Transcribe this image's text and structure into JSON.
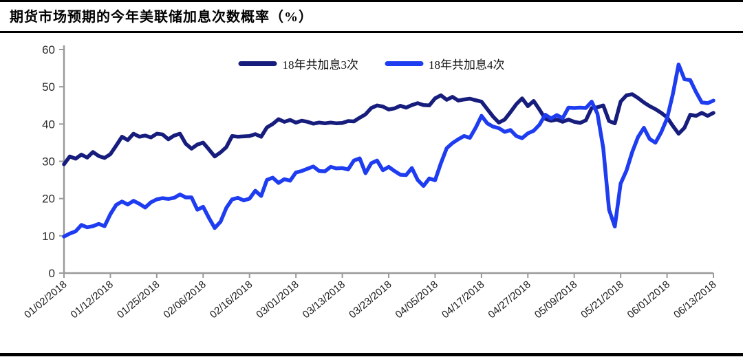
{
  "page": {
    "title": "期货市场预期的今年美联储加息次数概率（%）"
  },
  "chart_data": {
    "type": "line",
    "title": "期货市场预期的今年美联储加息次数概率（%）",
    "xlabel": "",
    "ylabel": "",
    "ylim": [
      0,
      60
    ],
    "y_ticks": [
      0,
      10,
      20,
      30,
      40,
      50,
      60
    ],
    "grid": false,
    "legend_position": "top-center",
    "axis_color": "#9a9a9a",
    "tick_text_color": "#2b2b2b",
    "x_labels": [
      "01/02/2018",
      "01/12/2018",
      "01/25/2018",
      "02/06/2018",
      "02/16/2018",
      "03/01/2018",
      "03/13/2018",
      "03/23/2018",
      "04/05/2018",
      "04/17/2018",
      "04/27/2018",
      "05/09/2018",
      "05/21/2018",
      "06/01/2018",
      "06/13/2018"
    ],
    "x_tick_step": 8,
    "series": [
      {
        "name": "18年共加息3次",
        "color": "#171d7c",
        "values": [
          29.2,
          31.3,
          30.7,
          31.8,
          31.0,
          32.5,
          31.4,
          30.9,
          31.9,
          34.2,
          36.6,
          35.7,
          37.4,
          36.6,
          36.9,
          36.4,
          37.4,
          37.2,
          35.9,
          36.9,
          37.4,
          34.7,
          33.4,
          34.5,
          35.0,
          33.2,
          31.3,
          32.4,
          33.8,
          36.8,
          36.6,
          36.7,
          36.8,
          37.3,
          36.6,
          39.1,
          40.0,
          41.3,
          40.6,
          41.1,
          40.4,
          40.9,
          40.6,
          40.1,
          40.4,
          40.2,
          40.4,
          40.2,
          40.3,
          40.8,
          40.7,
          41.7,
          42.6,
          44.3,
          45.0,
          44.7,
          43.9,
          44.2,
          44.9,
          44.4,
          45.1,
          45.6,
          45.1,
          45.0,
          46.9,
          47.7,
          46.5,
          47.3,
          46.3,
          46.6,
          46.8,
          46.4,
          46.0,
          44.0,
          42.0,
          40.4,
          41.2,
          43.2,
          45.3,
          46.9,
          44.8,
          46.2,
          43.9,
          41.4,
          40.9,
          41.2,
          40.6,
          41.2,
          40.6,
          40.3,
          41.0,
          44.3,
          44.5,
          45.0,
          40.8,
          40.2,
          46.0,
          47.7,
          48.0,
          47.0,
          45.8,
          44.8,
          44.0,
          43.0,
          41.8,
          39.5,
          37.4,
          39.0,
          42.5,
          42.2,
          43.0,
          42.2,
          43.0
        ]
      },
      {
        "name": "18年共加息4次",
        "color": "#1e3cf0",
        "values": [
          9.8,
          10.6,
          11.2,
          12.9,
          12.3,
          12.6,
          13.2,
          12.6,
          15.8,
          18.3,
          19.2,
          18.4,
          19.4,
          18.6,
          17.6,
          19.0,
          19.8,
          20.1,
          19.9,
          20.2,
          21.1,
          20.3,
          20.3,
          17.0,
          17.8,
          14.8,
          12.1,
          13.8,
          17.5,
          19.8,
          20.2,
          19.5,
          20.0,
          22.1,
          20.7,
          25.0,
          25.6,
          24.2,
          25.2,
          24.8,
          27.0,
          27.4,
          28.0,
          28.6,
          27.4,
          27.3,
          28.5,
          28.1,
          28.2,
          27.8,
          30.2,
          30.8,
          26.8,
          29.5,
          30.2,
          27.6,
          28.5,
          27.4,
          26.4,
          26.3,
          28.2,
          25.0,
          23.4,
          25.4,
          24.9,
          29.5,
          33.5,
          34.9,
          35.9,
          36.8,
          36.3,
          39.0,
          42.2,
          40.2,
          39.3,
          38.9,
          37.9,
          38.4,
          36.8,
          36.2,
          37.5,
          38.2,
          39.8,
          42.5,
          41.5,
          42.4,
          41.6,
          44.4,
          44.3,
          44.4,
          44.3,
          46.0,
          42.8,
          33.5,
          17.0,
          12.5,
          24.0,
          27.5,
          32.5,
          36.5,
          39.0,
          36.0,
          35.0,
          37.8,
          41.5,
          48.0,
          56.0,
          52.0,
          51.8,
          48.6,
          45.8,
          45.6,
          46.3
        ]
      }
    ]
  }
}
